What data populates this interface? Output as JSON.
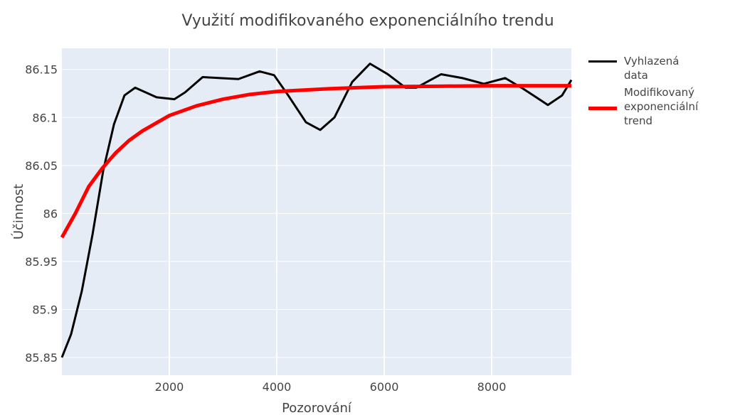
{
  "chart_data": {
    "type": "line",
    "title": "Využití modifikovaného exponenciálního trendu",
    "xlabel": "Pozorování",
    "ylabel": "Účinnost",
    "xlim": [
      0,
      9483
    ],
    "ylim": [
      85.8315,
      86.172
    ],
    "xticks": [
      2000,
      4000,
      6000,
      8000
    ],
    "yticks": [
      85.85,
      85.9,
      85.95,
      86,
      86.05,
      86.1,
      86.15
    ],
    "grid": true,
    "series": [
      {
        "name": "Vyhlazená data",
        "color": "#000000",
        "x": [
          0,
          170,
          370,
          570,
          770,
          970,
          1165,
          1364,
          1563,
          1762,
          2093,
          2290,
          2620,
          2950,
          3285,
          3680,
          3950,
          4212,
          4543,
          4808,
          5073,
          5404,
          5735,
          6066,
          6397,
          6596,
          7060,
          7457,
          7854,
          8252,
          8583,
          9046,
          9311,
          9483
        ],
        "values": [
          85.85,
          85.874,
          85.919,
          85.978,
          86.045,
          86.093,
          86.123,
          86.131,
          86.126,
          86.121,
          86.119,
          86.126,
          86.142,
          86.141,
          86.14,
          86.148,
          86.144,
          86.123,
          86.095,
          86.087,
          86.1,
          86.137,
          86.156,
          86.145,
          86.131,
          86.131,
          86.145,
          86.141,
          86.135,
          86.141,
          86.13,
          86.113,
          86.123,
          86.139
        ]
      },
      {
        "name": "Modifikovaný exponenciální trend",
        "color": "#ff0000",
        "x": [
          0,
          250,
          500,
          750,
          1000,
          1250,
          1500,
          2000,
          2500,
          3000,
          3500,
          4000,
          5000,
          6000,
          7000,
          8000,
          9483
        ],
        "values": [
          85.975,
          86.0,
          86.028,
          86.047,
          86.063,
          86.076,
          86.086,
          86.102,
          86.112,
          86.119,
          86.124,
          86.127,
          86.13,
          86.132,
          86.1325,
          86.133,
          86.133
        ]
      }
    ]
  }
}
